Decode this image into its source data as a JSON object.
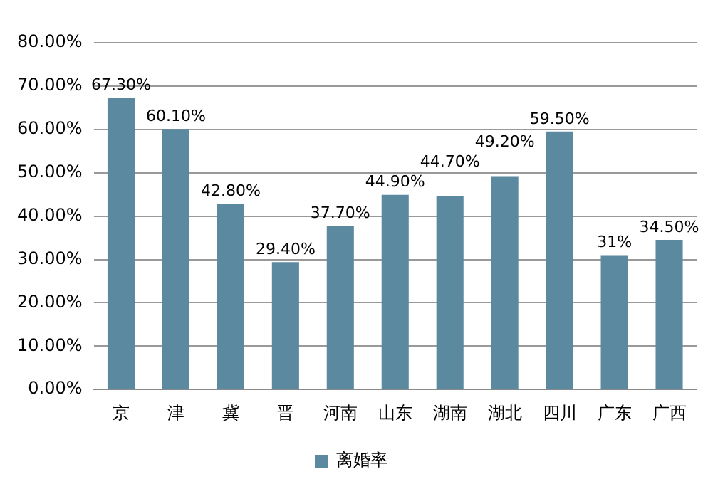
{
  "chart_data": {
    "type": "bar",
    "categories": [
      "京",
      "津",
      "冀",
      "晋",
      "河南",
      "山东",
      "湖南",
      "湖北",
      "四川",
      "广东",
      "广西"
    ],
    "series": [
      {
        "name": "离婚率",
        "color": "#5b8aa0",
        "values": [
          67.3,
          60.1,
          42.8,
          29.4,
          37.7,
          44.9,
          44.7,
          49.2,
          59.5,
          31,
          34.5
        ],
        "value_labels": [
          "67.30%",
          "60.10%",
          "42.80%",
          "29.40%",
          "37.70%",
          "44.90%",
          "44.70%",
          "49.20%",
          "59.50%",
          "31%",
          "34.50%"
        ]
      }
    ],
    "ylim": [
      0,
      80
    ],
    "yticks": [
      {
        "value": 0,
        "label": "0.00%"
      },
      {
        "value": 10,
        "label": "10.00%"
      },
      {
        "value": 20,
        "label": "20.00%"
      },
      {
        "value": 30,
        "label": "30.00%"
      },
      {
        "value": 40,
        "label": "40.00%"
      },
      {
        "value": 50,
        "label": "50.00%"
      },
      {
        "value": 60,
        "label": "60.00%"
      },
      {
        "value": 70,
        "label": "70.00%"
      },
      {
        "value": 80,
        "label": "80.00%"
      }
    ],
    "grid": "y",
    "legend": "bottom"
  }
}
